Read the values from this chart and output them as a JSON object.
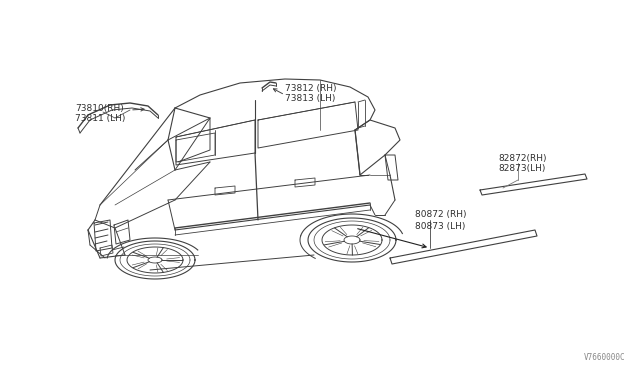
{
  "bg_color": "#ffffff",
  "line_color": "#404040",
  "label_color": "#303030",
  "watermark": "V7660000C",
  "labels": {
    "tl1": "73810(RH)",
    "tl2": "73811 (LH)",
    "tm1": "73812 (RH)",
    "tm2": "73813 (LH)",
    "rt1": "82872(RH)",
    "rt2": "82873(LH)",
    "rb1": "80872 (RH)",
    "rb2": "80873 (LH)"
  },
  "figsize": [
    6.4,
    3.72
  ],
  "dpi": 100
}
